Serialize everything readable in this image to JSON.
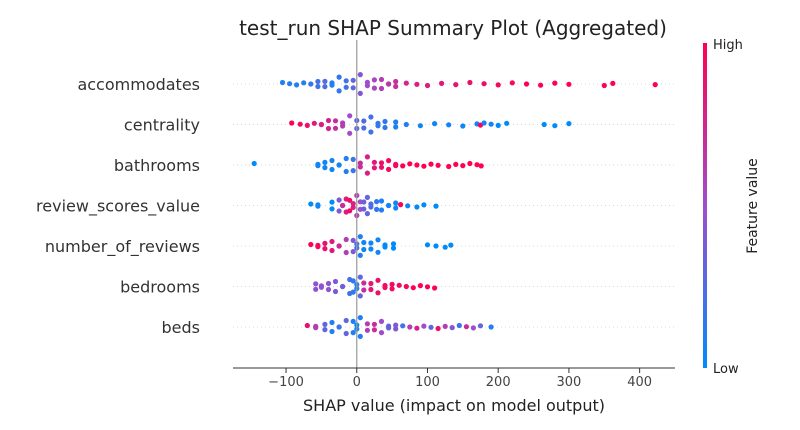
{
  "chart_data": {
    "type": "scatter",
    "title": "test_run SHAP Summary Plot (Aggregated)",
    "xlabel": "SHAP value (impact on model output)",
    "xlim": [
      -175,
      450
    ],
    "xticks": [
      -100,
      0,
      100,
      200,
      300,
      400
    ],
    "xtick_labels": [
      "−100",
      "0",
      "100",
      "200",
      "300",
      "400"
    ],
    "colorbar": {
      "title": "Feature value",
      "high_label": "High",
      "low_label": "Low",
      "low_color": "#008bfb",
      "mid_color": "#9f4dcc",
      "high_color": "#ff0052"
    },
    "zero_line": true,
    "features": [
      {
        "name": "accommodates",
        "points": [
          [
            -105,
            0.1
          ],
          [
            -95,
            0.1
          ],
          [
            -85,
            0.1
          ],
          [
            -75,
            0.1
          ],
          [
            -65,
            0.15
          ],
          [
            -55,
            0.2
          ],
          [
            -45,
            0.25
          ],
          [
            -35,
            0.1
          ],
          [
            -25,
            0.15
          ],
          [
            -15,
            0.2
          ],
          [
            -5,
            0.3
          ],
          [
            5,
            0.4
          ],
          [
            15,
            0.5
          ],
          [
            25,
            0.55
          ],
          [
            35,
            0.6
          ],
          [
            45,
            0.65
          ],
          [
            55,
            0.7
          ],
          [
            70,
            0.75
          ],
          [
            85,
            0.8
          ],
          [
            100,
            0.82
          ],
          [
            120,
            0.85
          ],
          [
            140,
            0.88
          ],
          [
            160,
            0.9
          ],
          [
            180,
            0.92
          ],
          [
            200,
            0.95
          ],
          [
            220,
            0.95
          ],
          [
            240,
            1.0
          ],
          [
            260,
            1.0
          ],
          [
            280,
            1.0
          ],
          [
            300,
            1.0
          ],
          [
            350,
            1.0
          ],
          [
            362,
            1.0
          ],
          [
            422,
            1.0
          ]
        ]
      },
      {
        "name": "centrality",
        "points": [
          [
            -92,
            1.0
          ],
          [
            -80,
            0.95
          ],
          [
            -70,
            0.9
          ],
          [
            -60,
            0.85
          ],
          [
            -50,
            0.8
          ],
          [
            -40,
            0.75
          ],
          [
            -30,
            0.7
          ],
          [
            -20,
            0.6
          ],
          [
            -10,
            0.5
          ],
          [
            0,
            0.3
          ],
          [
            10,
            0.25
          ],
          [
            20,
            0.2
          ],
          [
            30,
            0.15
          ],
          [
            40,
            0.15
          ],
          [
            55,
            0.1
          ],
          [
            70,
            0.1
          ],
          [
            90,
            0.05
          ],
          [
            110,
            0.05
          ],
          [
            130,
            0.05
          ],
          [
            150,
            0.05
          ],
          [
            170,
            0.05
          ],
          [
            175,
            1.0
          ],
          [
            180,
            0.05
          ],
          [
            190,
            0.05
          ],
          [
            200,
            0.0
          ],
          [
            212,
            0.0
          ],
          [
            265,
            0.0
          ],
          [
            280,
            0.0
          ],
          [
            300,
            0.0
          ]
        ]
      },
      {
        "name": "bathrooms",
        "points": [
          [
            -145,
            0.0
          ],
          [
            -55,
            0.05
          ],
          [
            -45,
            0.05
          ],
          [
            -35,
            0.05
          ],
          [
            -25,
            0.05
          ],
          [
            -15,
            0.1
          ],
          [
            -5,
            0.2
          ],
          [
            5,
            0.7
          ],
          [
            15,
            0.8
          ],
          [
            25,
            0.85
          ],
          [
            35,
            0.9
          ],
          [
            45,
            0.95
          ],
          [
            55,
            0.95
          ],
          [
            65,
            1.0
          ],
          [
            75,
            1.0
          ],
          [
            85,
            1.0
          ],
          [
            95,
            1.0
          ],
          [
            105,
            1.0
          ],
          [
            115,
            1.0
          ],
          [
            130,
            1.0
          ],
          [
            140,
            1.0
          ],
          [
            150,
            1.0
          ],
          [
            160,
            1.0
          ],
          [
            170,
            1.0
          ],
          [
            176,
            1.0
          ]
        ]
      },
      {
        "name": "review_scores_value",
        "points": [
          [
            -65,
            0.0
          ],
          [
            -55,
            0.05
          ],
          [
            -35,
            0.0
          ],
          [
            -25,
            0.4
          ],
          [
            -20,
            0.7
          ],
          [
            -15,
            0.85
          ],
          [
            -10,
            0.9
          ],
          [
            -5,
            0.8
          ],
          [
            0,
            0.6
          ],
          [
            5,
            0.5
          ],
          [
            10,
            0.35
          ],
          [
            15,
            0.3
          ],
          [
            20,
            0.25
          ],
          [
            28,
            0.15
          ],
          [
            35,
            0.1
          ],
          [
            45,
            0.05
          ],
          [
            55,
            0.05
          ],
          [
            62,
            1.0
          ],
          [
            72,
            0.05
          ],
          [
            85,
            0.0
          ],
          [
            95,
            0.0
          ],
          [
            112,
            0.0
          ]
        ]
      },
      {
        "name": "number_of_reviews",
        "points": [
          [
            -65,
            1.0
          ],
          [
            -55,
            0.95
          ],
          [
            -45,
            0.9
          ],
          [
            -35,
            0.85
          ],
          [
            -25,
            0.75
          ],
          [
            -15,
            0.6
          ],
          [
            -5,
            0.4
          ],
          [
            0,
            0.2
          ],
          [
            5,
            0.1
          ],
          [
            10,
            0.05
          ],
          [
            20,
            0.05
          ],
          [
            30,
            0.05
          ],
          [
            40,
            0.0
          ],
          [
            52,
            0.0
          ],
          [
            100,
            0.0
          ],
          [
            112,
            0.0
          ],
          [
            125,
            0.0
          ],
          [
            133,
            0.0
          ]
        ]
      },
      {
        "name": "bedrooms",
        "points": [
          [
            -58,
            0.45
          ],
          [
            -50,
            0.45
          ],
          [
            -40,
            0.45
          ],
          [
            -30,
            0.4
          ],
          [
            -20,
            0.35
          ],
          [
            -10,
            0.2
          ],
          [
            -5,
            0.15
          ],
          [
            0,
            0.1
          ],
          [
            5,
            0.3
          ],
          [
            10,
            0.7
          ],
          [
            20,
            0.85
          ],
          [
            30,
            0.9
          ],
          [
            40,
            0.92
          ],
          [
            50,
            0.95
          ],
          [
            60,
            0.95
          ],
          [
            70,
            0.95
          ],
          [
            80,
            1.0
          ],
          [
            90,
            1.0
          ],
          [
            100,
            1.0
          ],
          [
            110,
            1.0
          ]
        ]
      },
      {
        "name": "beds",
        "points": [
          [
            -70,
            0.9
          ],
          [
            -58,
            0.6
          ],
          [
            -45,
            0.3
          ],
          [
            -35,
            0.1
          ],
          [
            -25,
            0.2
          ],
          [
            -15,
            0.3
          ],
          [
            -5,
            0.1
          ],
          [
            0,
            0.05
          ],
          [
            5,
            0.1
          ],
          [
            15,
            0.6
          ],
          [
            25,
            0.7
          ],
          [
            35,
            0.5
          ],
          [
            45,
            0.3
          ],
          [
            55,
            0.4
          ],
          [
            65,
            0.2
          ],
          [
            75,
            0.6
          ],
          [
            85,
            0.8
          ],
          [
            95,
            0.5
          ],
          [
            105,
            0.3
          ],
          [
            115,
            0.9
          ],
          [
            125,
            0.6
          ],
          [
            135,
            0.4
          ],
          [
            145,
            0.2
          ],
          [
            155,
            0.7
          ],
          [
            165,
            0.5
          ],
          [
            175,
            0.3
          ],
          [
            190,
            0.1
          ]
        ]
      }
    ]
  }
}
